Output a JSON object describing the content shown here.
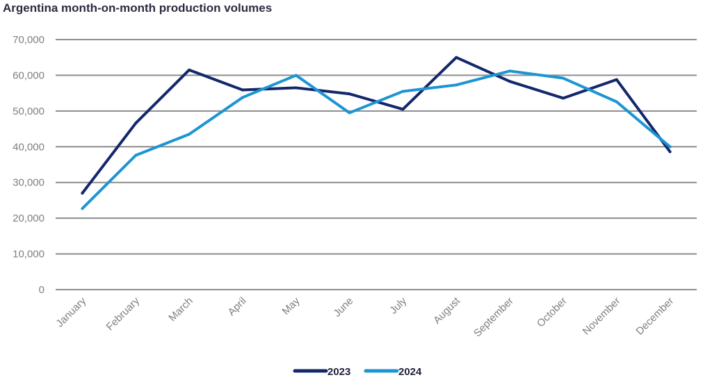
{
  "chart_data": {
    "type": "line",
    "title": "Argentina month-on-month production volumes",
    "xlabel": "",
    "ylabel": "",
    "categories": [
      "January",
      "February",
      "March",
      "April",
      "May",
      "June",
      "July",
      "August",
      "September",
      "October",
      "November",
      "December"
    ],
    "ylim": [
      0,
      70000
    ],
    "yticks": [
      0,
      10000,
      20000,
      30000,
      40000,
      50000,
      60000,
      70000
    ],
    "ytick_labels": [
      "0",
      "10,000",
      "20,000",
      "30,000",
      "40,000",
      "50,000",
      "60,000",
      "70,000"
    ],
    "grid": true,
    "legend_position": "bottom-center",
    "series": [
      {
        "name": "2023",
        "color": "#13286b",
        "values": [
          27000,
          46600,
          61500,
          55900,
          56500,
          54800,
          50500,
          65000,
          58300,
          53600,
          58800,
          38600
        ]
      },
      {
        "name": "2024",
        "color": "#1c95d3",
        "values": [
          22700,
          37600,
          43500,
          53800,
          60000,
          49500,
          55500,
          57300,
          61200,
          59200,
          52600,
          40000
        ]
      }
    ]
  }
}
